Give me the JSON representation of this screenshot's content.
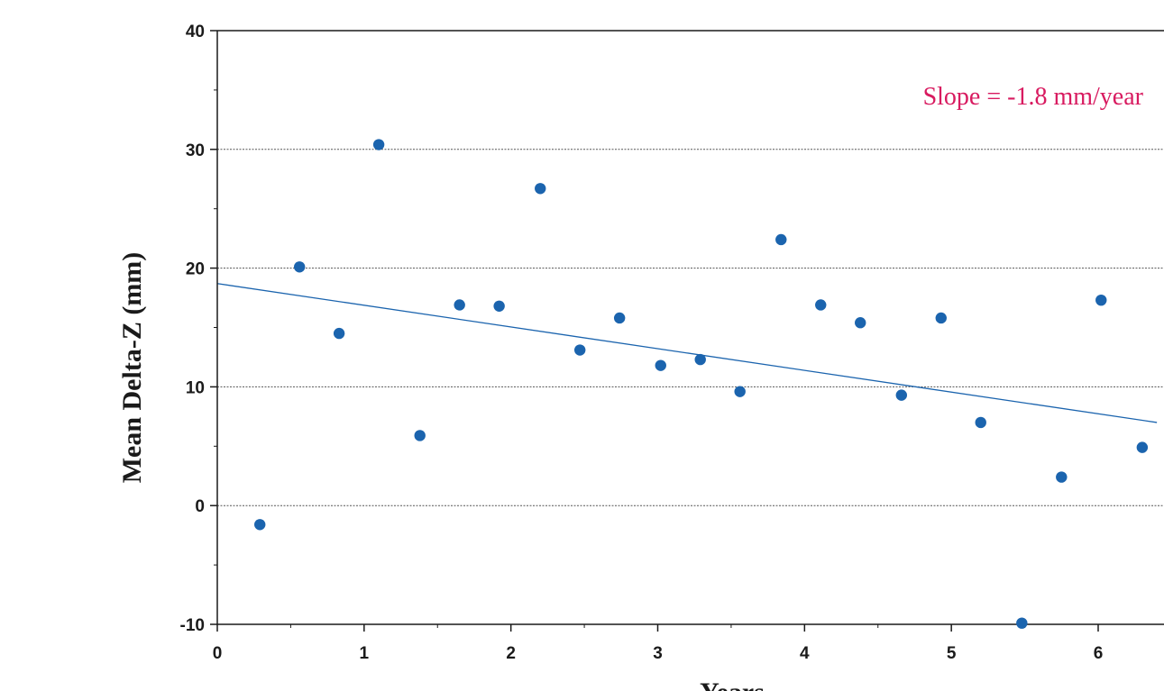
{
  "chart_data": {
    "type": "scatter",
    "title": "",
    "xlabel": "Years",
    "ylabel": "Mean Delta-Z (mm)",
    "xlim": [
      0,
      6.4
    ],
    "ylim": [
      -10,
      40
    ],
    "x_ticks": [
      0,
      1,
      2,
      3,
      4,
      5,
      6
    ],
    "x_tick_labels": [
      "0",
      "1",
      "2",
      "3",
      "4",
      "5",
      "6"
    ],
    "y_ticks": [
      -10,
      0,
      10,
      20,
      30,
      40
    ],
    "y_tick_labels": [
      "-10",
      "0",
      "10",
      "20",
      "30",
      "40"
    ],
    "grid": "horizontal dotted",
    "annotation": "Slope = -1.8 mm/year",
    "series": [
      {
        "x": [
          0.29,
          0.56,
          0.83,
          1.1,
          1.38,
          1.65,
          1.92,
          2.2,
          2.47,
          2.74,
          3.02,
          3.29,
          3.56,
          3.84,
          4.11,
          4.38,
          4.66,
          4.93,
          5.2,
          5.48,
          5.75,
          6.02,
          6.3
        ],
        "y": [
          -1.6,
          20.1,
          14.5,
          30.4,
          5.9,
          16.9,
          16.8,
          26.7,
          13.1,
          15.8,
          11.8,
          12.3,
          9.6,
          22.4,
          16.9,
          15.4,
          9.3,
          15.8,
          7.0,
          -9.9,
          2.4,
          17.3,
          4.9
        ]
      }
    ],
    "trendline": {
      "x": [
        0,
        6.4
      ],
      "y": [
        18.7,
        7.0
      ]
    }
  },
  "colors": {
    "points": "#1b64ae",
    "trendline": "#1b64ae",
    "annotation": "#d81b60",
    "axes": "#1a1a1a",
    "grid": "#555555"
  }
}
